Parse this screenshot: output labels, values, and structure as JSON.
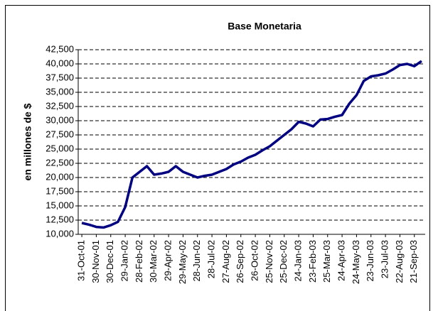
{
  "chart_data": {
    "type": "line",
    "title": "Base Monetaria",
    "y_label": "en millones de $",
    "categories": [
      "31-Oct-01",
      null,
      "30-Nov-01",
      null,
      "30-Dec-01",
      null,
      "29-Jan-02",
      null,
      "28-Feb-02",
      null,
      "30-Mar-02",
      null,
      "29-Apr-02",
      null,
      "29-May-02",
      null,
      "28-Jun-02",
      null,
      "28-Jul-02",
      null,
      "27-Aug-02",
      null,
      "26-Sep-02",
      null,
      "26-Oct-02",
      null,
      "25-Nov-02",
      null,
      "25-Dec-02",
      null,
      "24-Jan-03",
      null,
      "23-Feb-03",
      null,
      "25-Mar-03",
      null,
      "24-Apr-03",
      null,
      "24-May-03",
      null,
      "23-Jun-03",
      null,
      "23-Jul-03",
      null,
      "22-Aug-03",
      null,
      "21-Sep-03",
      null
    ],
    "series": [
      {
        "name": "Base Monetaria",
        "color": "#000080",
        "values": [
          12000,
          11700,
          11300,
          11200,
          11600,
          12200,
          14800,
          20000,
          21000,
          22000,
          20500,
          20700,
          21000,
          22000,
          21000,
          20500,
          20000,
          20300,
          20500,
          21000,
          21500,
          22300,
          22800,
          23500,
          24000,
          24800,
          25500,
          26500,
          27500,
          28500,
          29800,
          29500,
          29000,
          30200,
          30300,
          30700,
          31000,
          33000,
          34500,
          37000,
          37800,
          38000,
          38300,
          39000,
          39800,
          40000,
          39600,
          40500
        ]
      }
    ],
    "ylim": [
      10000,
      42500
    ],
    "yticks": [
      {
        "value": 10000,
        "label": "10,000"
      },
      {
        "value": 12500,
        "label": "12,500"
      },
      {
        "value": 15000,
        "label": "15,000"
      },
      {
        "value": 17500,
        "label": "17,500"
      },
      {
        "value": 20000,
        "label": "20,000"
      },
      {
        "value": 22500,
        "label": "22,500"
      },
      {
        "value": 25000,
        "label": "25,000"
      },
      {
        "value": 27500,
        "label": "27,500"
      },
      {
        "value": 30000,
        "label": "30,000"
      },
      {
        "value": 32500,
        "label": "32,500"
      },
      {
        "value": 35000,
        "label": "35,000"
      },
      {
        "value": 37500,
        "label": "37,500"
      },
      {
        "value": 40000,
        "label": "40,000"
      },
      {
        "value": 42500,
        "label": "42,500"
      }
    ],
    "grid": true
  }
}
